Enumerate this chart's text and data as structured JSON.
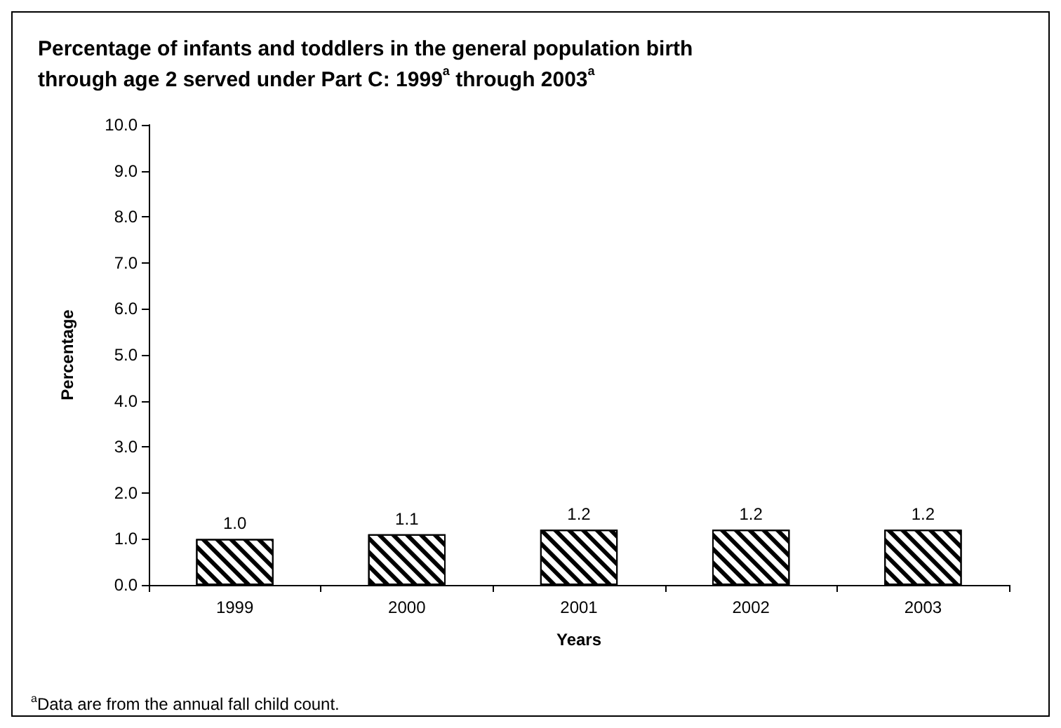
{
  "chart_data": {
    "type": "bar",
    "title": "Percentage of infants and toddlers in the general population birth through age 2 served under Part C: 1999$^{a}$ through 2003$^{a}$",
    "xlabel": "Years",
    "ylabel": "Percentage",
    "categories": [
      "1999",
      "2000",
      "2001",
      "2002",
      "2003"
    ],
    "values": [
      1.0,
      1.1,
      1.2,
      1.2,
      1.2
    ],
    "value_labels": [
      "1.0",
      "1.1",
      "1.2",
      "1.2",
      "1.2"
    ],
    "color": "#000000",
    "ylim": [
      0,
      10
    ],
    "yticks": [
      {
        "value": 0,
        "label": "0.0"
      },
      {
        "value": 1,
        "label": "1.0"
      },
      {
        "value": 2,
        "label": "2.0"
      },
      {
        "value": 3,
        "label": "3.0"
      },
      {
        "value": 4,
        "label": "4.0"
      },
      {
        "value": 5,
        "label": "5.0"
      },
      {
        "value": 6,
        "label": "6.0"
      },
      {
        "value": 7,
        "label": "7.0"
      },
      {
        "value": 8,
        "label": "8.0"
      },
      {
        "value": 9,
        "label": "9.0"
      },
      {
        "value": 10,
        "label": "10.0"
      }
    ],
    "grid": false,
    "annotations": [
      "$^{a}$Data are from the annual fall child count."
    ]
  }
}
